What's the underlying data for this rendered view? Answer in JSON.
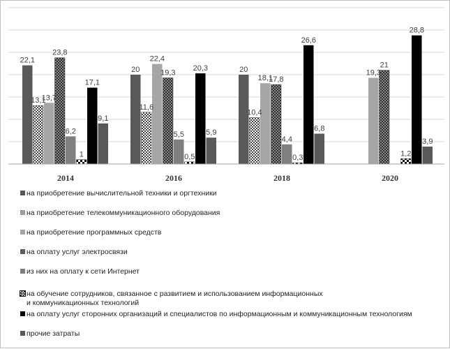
{
  "chart_data": {
    "type": "bar",
    "title": "",
    "xlabel": "",
    "ylabel": "",
    "ylim": [
      0,
      35
    ],
    "grid": true,
    "legend_position": "bottom",
    "categories": [
      "2014",
      "2016",
      "2018",
      "2020"
    ],
    "series": [
      {
        "name": "на приобретение вычислительной техники и оргтехники",
        "values": [
          22.1,
          20,
          20,
          null
        ],
        "labels": [
          "22,1",
          "20",
          "20",
          ""
        ],
        "color": "#595959",
        "pattern": "solid"
      },
      {
        "name": "на приобретение телекоммуникационного оборудования",
        "values": [
          13.1,
          11.6,
          10.4,
          null
        ],
        "labels": [
          "13,1",
          "11,6",
          "10,4",
          ""
        ],
        "color": "#404040",
        "pattern": "dots"
      },
      {
        "name": "на приобретение программных средств",
        "values": [
          13.7,
          22.4,
          18.1,
          19.3
        ],
        "labels": [
          "13,7",
          "22,4",
          "18,1",
          "19,3"
        ],
        "color": "#a6a6a6",
        "pattern": "solid"
      },
      {
        "name": "на оплату услуг электросвязи",
        "values": [
          23.8,
          19.3,
          17.8,
          21
        ],
        "labels": [
          "23,8",
          "19,3",
          "17,8",
          "21"
        ],
        "color": "#595959",
        "pattern": "checks"
      },
      {
        "name": "из них на оплату к сети Интернет",
        "values": [
          6.2,
          5.5,
          4.4,
          null
        ],
        "labels": [
          "6,2",
          "5,5",
          "4,4",
          ""
        ],
        "color": "#7f7f7f",
        "pattern": "solid"
      },
      {
        "name": "на обучение сотрудников, связанное с развитием и использованием информационных\nи коммуникационных технологий",
        "values": [
          1,
          0.5,
          0.3,
          1.2
        ],
        "labels": [
          "1",
          "0,5",
          "0,3",
          "1,2"
        ],
        "color": "#000000",
        "pattern": "bigchecks"
      },
      {
        "name": "на оплату услуг сторонних организаций и специалистов по информационным и коммуникационным технологиям",
        "values": [
          17.1,
          20.3,
          26.6,
          28.8
        ],
        "labels": [
          "17,1",
          "20,3",
          "26,6",
          "28,8"
        ],
        "color": "#000000",
        "pattern": "solid"
      },
      {
        "name": "прочие затраты",
        "values": [
          9.1,
          5.9,
          6.8,
          3.9
        ],
        "labels": [
          "9,1",
          "5,9",
          "6,8",
          "3,9"
        ],
        "color": "#595959",
        "pattern": "solid"
      }
    ]
  }
}
